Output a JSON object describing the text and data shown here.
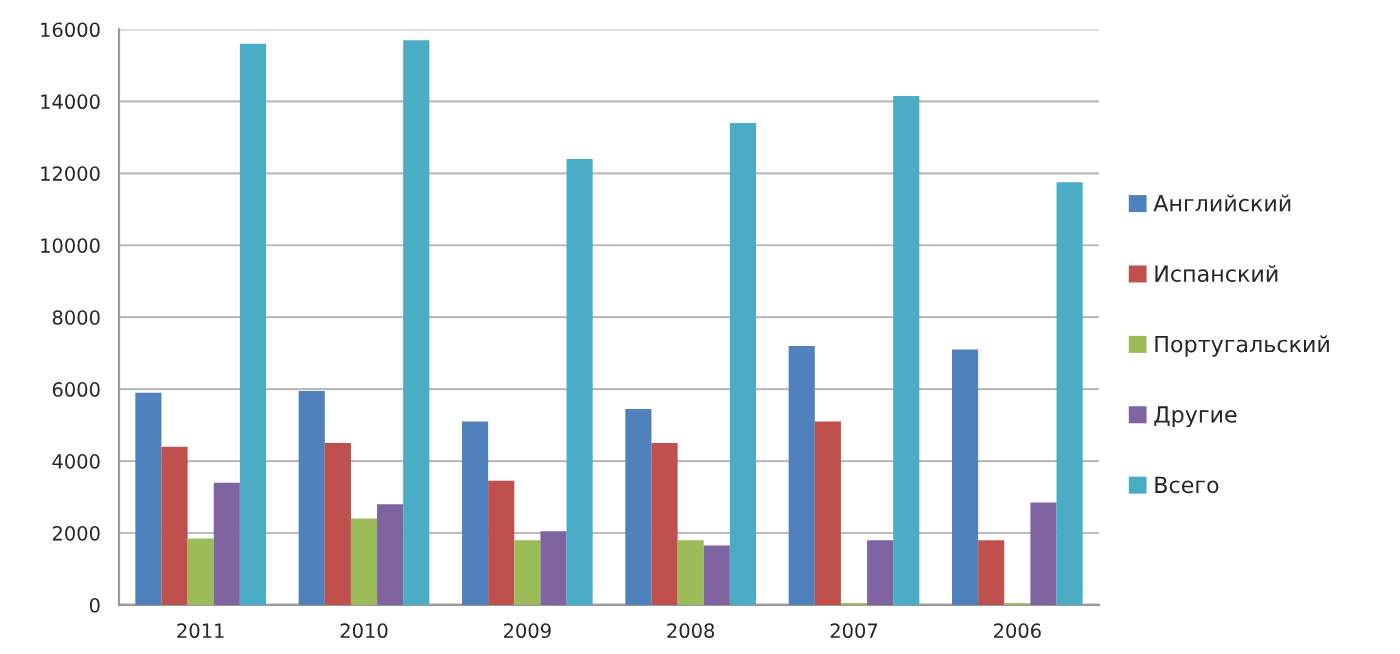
{
  "chart_data": {
    "type": "bar",
    "categories": [
      "2011",
      "2010",
      "2009",
      "2008",
      "2007",
      "2006"
    ],
    "series": [
      {
        "name": "Английский",
        "color": "#4f81bd",
        "values": [
          5900,
          5950,
          5100,
          5450,
          7200,
          7100
        ]
      },
      {
        "name": "Испанский",
        "color": "#c0504d",
        "values": [
          4400,
          4500,
          3450,
          4500,
          5100,
          1800
        ]
      },
      {
        "name": "Португальский",
        "color": "#9bbb59",
        "values": [
          1850,
          2400,
          1800,
          1800,
          50,
          50
        ]
      },
      {
        "name": "Другие",
        "color": "#8064a2",
        "values": [
          3400,
          2800,
          2050,
          1650,
          1800,
          2850
        ]
      },
      {
        "name": "Всего",
        "color": "#4bacc6",
        "values": [
          15600,
          15700,
          12400,
          13400,
          14150,
          11750
        ]
      }
    ],
    "ylim": [
      0,
      16000
    ],
    "yticks": [
      0,
      2000,
      4000,
      6000,
      8000,
      10000,
      12000,
      14000,
      16000
    ],
    "grid": "y",
    "legend": "right"
  }
}
